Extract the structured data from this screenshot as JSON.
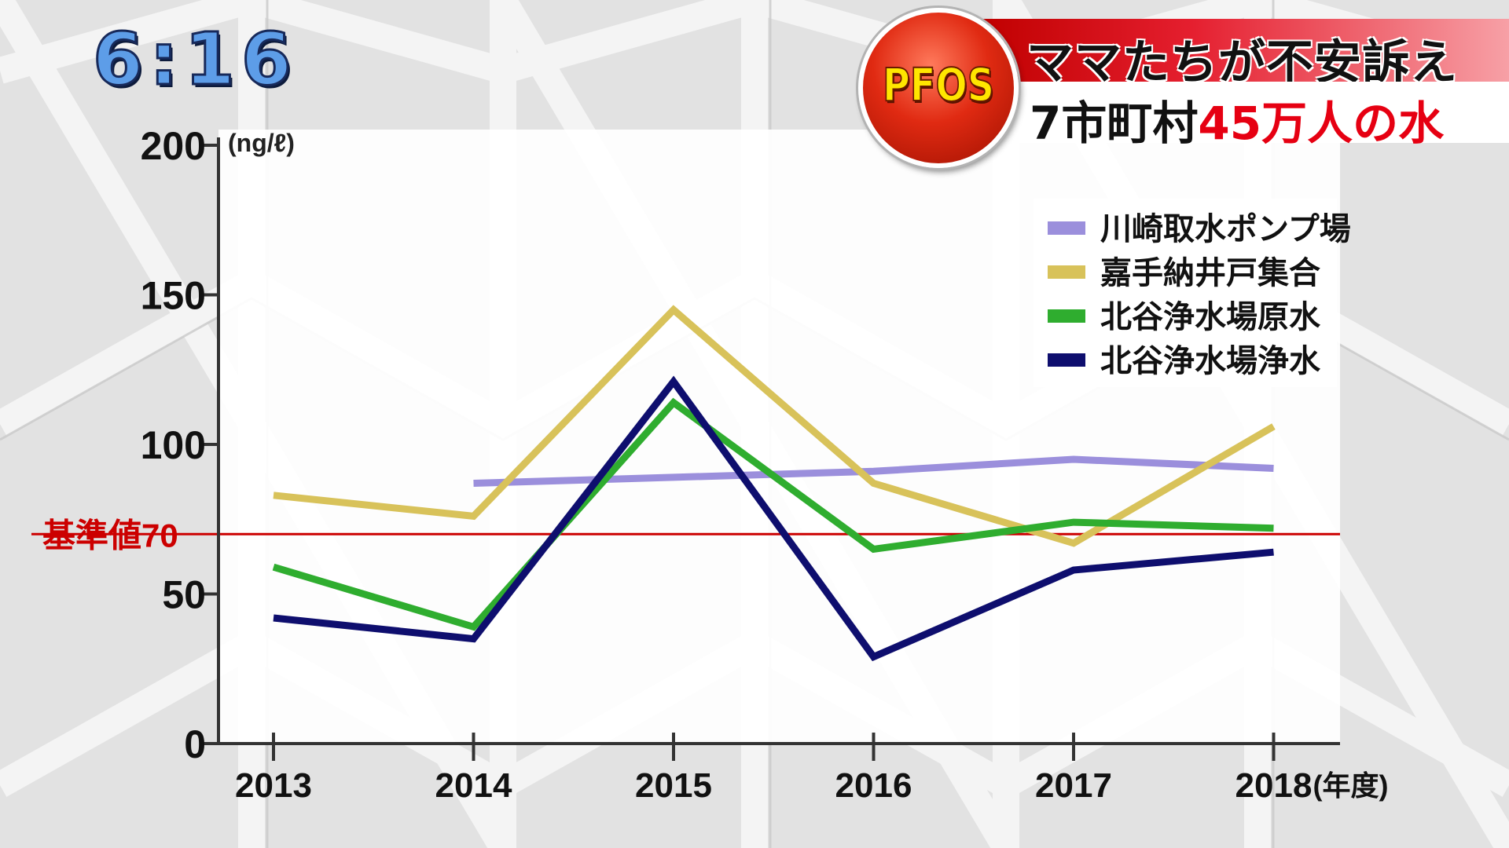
{
  "clock": "6:16",
  "badge": {
    "label": "PFOS"
  },
  "headline": {
    "line1": "ママたちが不安訴え",
    "line2_prefix": "7市町村",
    "line2_highlight": "45万人の水"
  },
  "colors": {
    "reference_line": "#cc0000",
    "axis": "#333333",
    "badge_red": "#e02a12",
    "badge_text": "#ffe600"
  },
  "chart_data": {
    "type": "line",
    "unit_label": "(ng/ℓ)",
    "x_unit_label": "(年度)",
    "categories": [
      "2013",
      "2014",
      "2015",
      "2016",
      "2017",
      "2018"
    ],
    "ylim": [
      0,
      200
    ],
    "yticks": [
      0,
      50,
      100,
      150,
      200
    ],
    "grid": false,
    "legend_position": "top-right",
    "reference_line": {
      "label": "基準値70",
      "value": 70
    },
    "series": [
      {
        "name": "川崎取水ポンプ場",
        "color": "#9b8fdc",
        "values": [
          null,
          87,
          89,
          91,
          95,
          92
        ]
      },
      {
        "name": "嘉手納井戸集合",
        "color": "#d8c25a",
        "values": [
          83,
          76,
          145,
          87,
          67,
          106
        ]
      },
      {
        "name": "北谷浄水場原水",
        "color": "#2fad2f",
        "values": [
          59,
          39,
          114,
          65,
          74,
          72
        ]
      },
      {
        "name": "北谷浄水場浄水",
        "color": "#0e0e6e",
        "values": [
          42,
          35,
          121,
          29,
          58,
          64
        ]
      }
    ]
  }
}
